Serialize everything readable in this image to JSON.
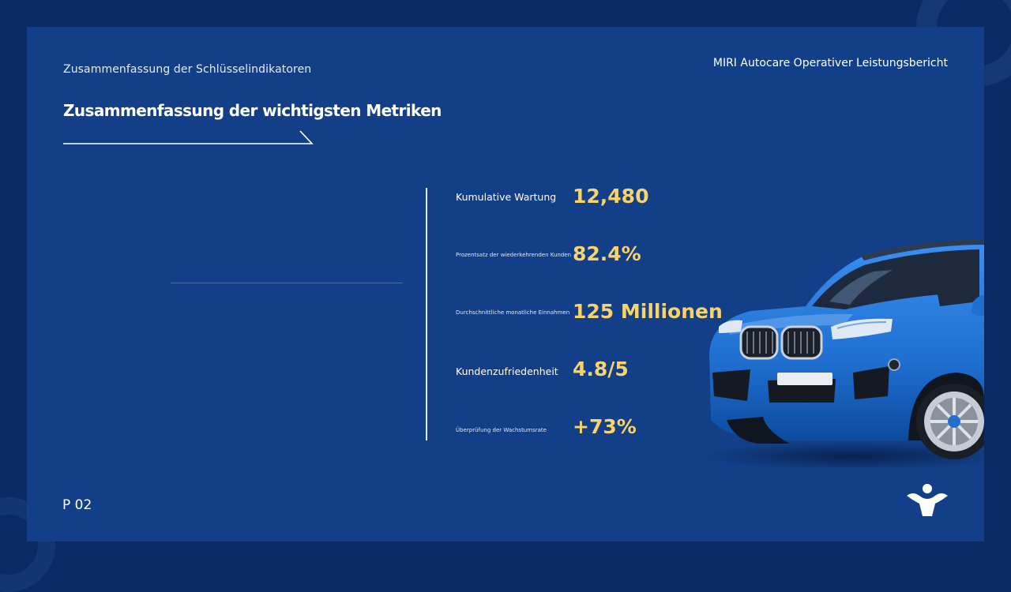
{
  "slide": {
    "subtitle": "Zusammenfassung der Schlüsselindikatoren",
    "report_title": "MIRI Autocare Operativer Leistungsbericht",
    "main_title": "Zusammenfassung der wichtigsten Metriken",
    "page_number": "P 02"
  },
  "metrics": [
    {
      "label": "Kumulative Wartung",
      "value": "12,480"
    },
    {
      "label": "Prozentsatz der wiederkehrenden Kunden",
      "value": "82.4%"
    },
    {
      "label": "Durchschnittliche monatliche Einnahmen",
      "value": "125 Millionen"
    },
    {
      "label": "Kundenzufriedenheit",
      "value": "4.8/5"
    },
    {
      "label": "Überprüfung der Wachstumsrate",
      "value": "+73%"
    }
  ],
  "icons": {
    "logo": "person-arms-up-logo-icon",
    "car_image": "blue-suv-image"
  },
  "colors": {
    "background": "#0b2a63",
    "slide_background": "#123f87",
    "value_accent": "#f6d36b",
    "text": "#ffffff",
    "car_blue": "#1f6fd0"
  }
}
